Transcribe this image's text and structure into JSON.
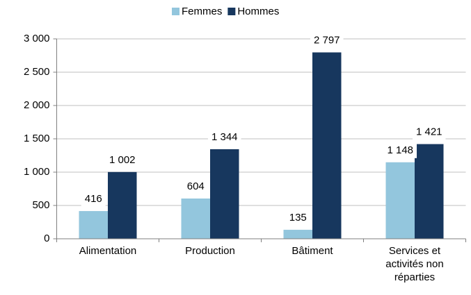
{
  "chart_data": {
    "type": "bar",
    "categories": [
      "Alimentation",
      "Production",
      "Bâtiment",
      "Services et activités non réparties"
    ],
    "series": [
      {
        "name": "Femmes",
        "color": "#93c6dd",
        "values": [
          416,
          604,
          135,
          1148
        ],
        "value_labels": [
          "416",
          "604",
          "135",
          "1 148"
        ]
      },
      {
        "name": "Hommes",
        "color": "#17375e",
        "values": [
          1002,
          1344,
          2797,
          1421
        ],
        "value_labels": [
          "1 002",
          "1 344",
          "2 797",
          "1 421"
        ]
      }
    ],
    "ylim": [
      0,
      3000
    ],
    "yticks": [
      0,
      500,
      {
        "value": 1000,
        "label": "1 000"
      },
      {
        "value": 1500,
        "label": "1 500"
      },
      {
        "value": 2000,
        "label": "2 000"
      },
      {
        "value": 2500,
        "label": "2 500"
      },
      {
        "value": 3000,
        "label": "3 000"
      }
    ],
    "grid": true,
    "legend": "top"
  }
}
